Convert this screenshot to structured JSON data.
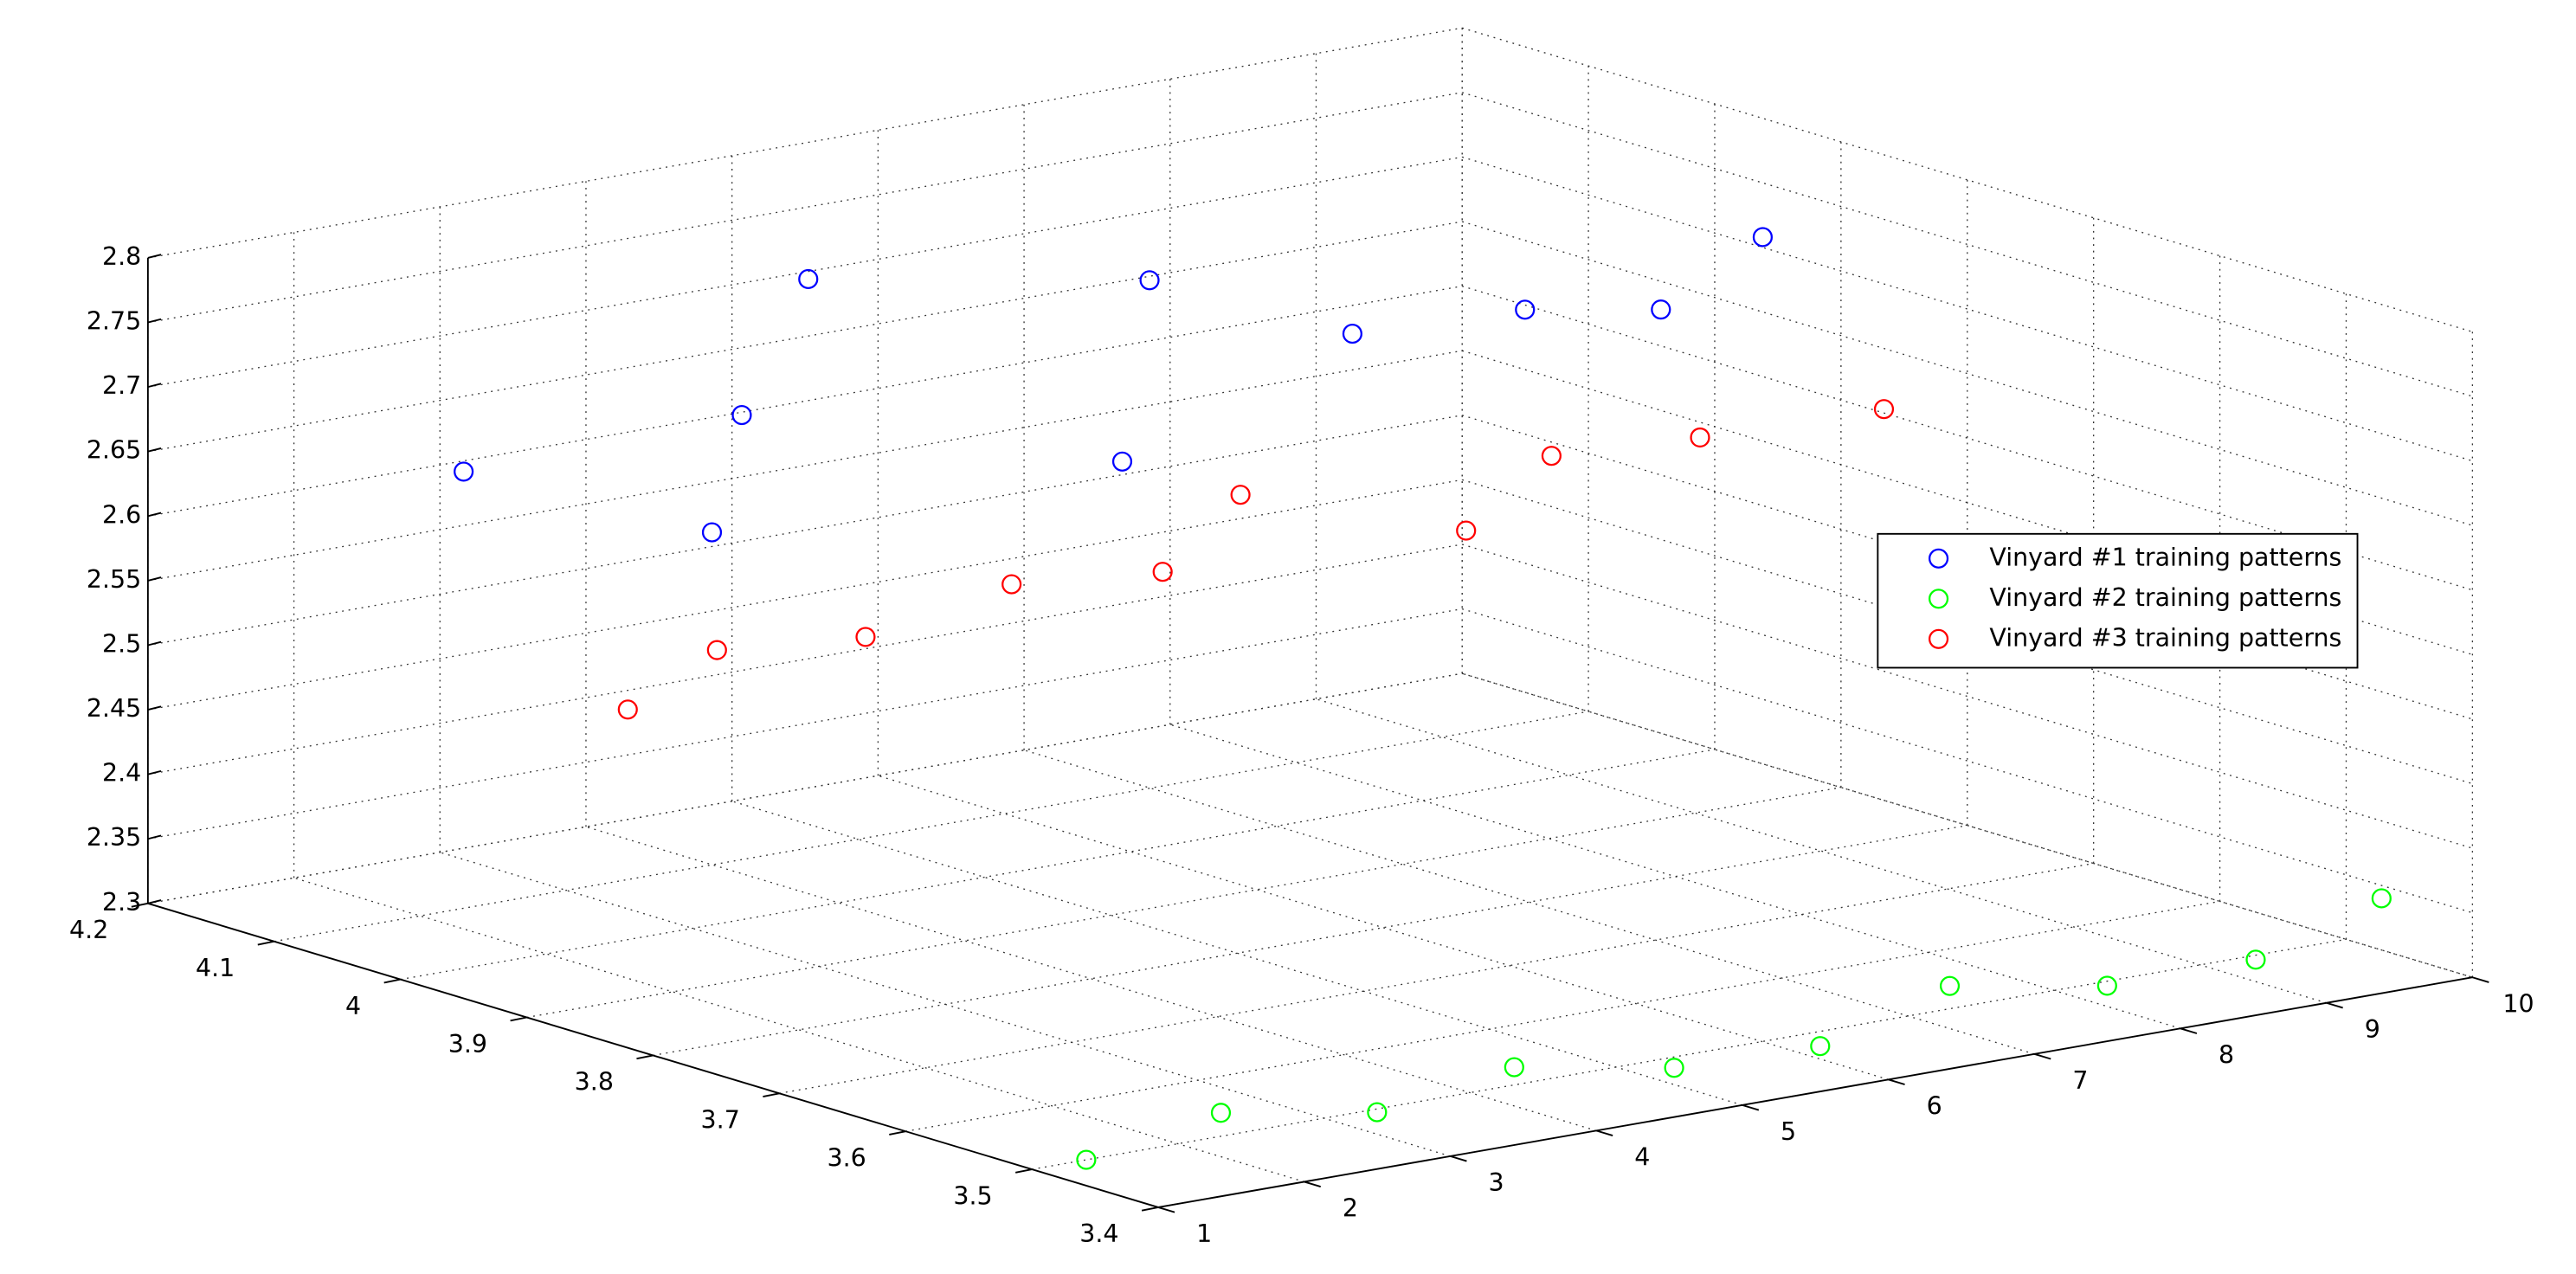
{
  "chart_data": {
    "type": "scatter",
    "xlim": [
      1,
      10
    ],
    "xticks": [
      1,
      2,
      3,
      4,
      5,
      6,
      7,
      8,
      9,
      10
    ],
    "ylim": [
      3.4,
      4.2
    ],
    "yticks": [
      3.4,
      3.5,
      3.6,
      3.7,
      3.8,
      3.9,
      4,
      4.1,
      4.2
    ],
    "zlim": [
      2.3,
      2.8
    ],
    "zticks": [
      2.3,
      2.35,
      2.4,
      2.45,
      2.5,
      2.55,
      2.6,
      2.65,
      2.7,
      2.75,
      2.8
    ],
    "grid": true,
    "legend": "east",
    "series": [
      {
        "name": "Vinyard #1 training patterns",
        "color": "#0000ff",
        "x": [
          1,
          2,
          3,
          4,
          5,
          6,
          7,
          8,
          9,
          10
        ],
        "y": [
          3.95,
          3.869,
          3.961,
          4.024,
          3.891,
          3.985,
          3.94,
          3.919,
          3.927,
          3.962
        ],
        "z": [
          2.708,
          2.665,
          2.709,
          2.776,
          2.654,
          2.747,
          2.699,
          2.704,
          2.682,
          2.708
        ]
      },
      {
        "name": "Vinyard #2 training patterns",
        "color": "#00ff00",
        "x": [
          1,
          2,
          3,
          4,
          5,
          6,
          7,
          8,
          9,
          10
        ],
        "y": [
          3.457,
          3.466,
          3.458,
          3.465,
          3.454,
          3.454,
          3.467,
          3.458,
          3.456,
          3.472
        ],
        "z": [
          2.32,
          2.334,
          2.317,
          2.33,
          2.313,
          2.31,
          2.333,
          2.316,
          2.317,
          2.34
        ]
      },
      {
        "name": "Vinyard #3 training patterns",
        "color": "#ff0000",
        "x": [
          1,
          2,
          3,
          4,
          5,
          6,
          7,
          8,
          9,
          10
        ],
        "y": [
          3.82,
          3.865,
          3.863,
          3.863,
          3.859,
          3.913,
          3.85,
          3.898,
          3.896,
          3.866
        ],
        "z": [
          2.562,
          2.575,
          2.566,
          2.587,
          2.578,
          2.602,
          2.573,
          2.597,
          2.592,
          2.603
        ]
      }
    ]
  }
}
